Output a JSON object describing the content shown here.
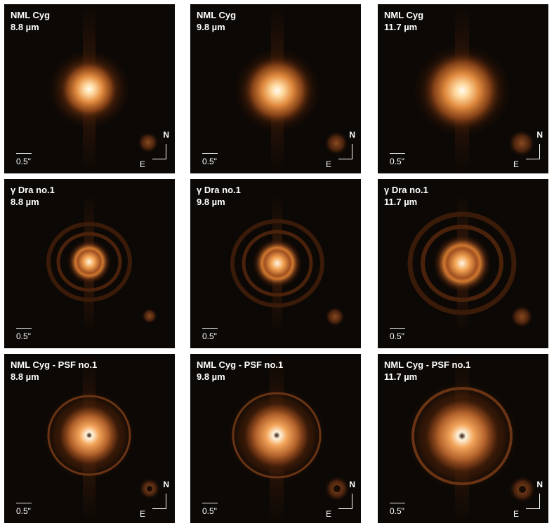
{
  "figure": {
    "scale_label": "0.5\"",
    "compass": {
      "north": "N",
      "east": "E"
    },
    "rows": [
      {
        "id": "target",
        "panels": [
          {
            "title": "NML Cyg",
            "wavelength": "8.8 µm"
          },
          {
            "title": "NML Cyg",
            "wavelength": "9.8 µm"
          },
          {
            "title": "NML Cyg",
            "wavelength": "11.7 µm"
          }
        ]
      },
      {
        "id": "psf",
        "panels": [
          {
            "title": "γ Dra no.1",
            "wavelength": "8.8 µm"
          },
          {
            "title": "γ Dra no.1",
            "wavelength": "9.8 µm"
          },
          {
            "title": "γ Dra no.1",
            "wavelength": "11.7 µm"
          }
        ]
      },
      {
        "id": "residual",
        "panels": [
          {
            "title": "NML Cyg - PSF no.1",
            "wavelength": "8.8 µm"
          },
          {
            "title": "NML Cyg - PSF no.1",
            "wavelength": "9.8 µm"
          },
          {
            "title": "NML Cyg - PSF no.1",
            "wavelength": "11.7 µm"
          }
        ]
      }
    ],
    "colors": {
      "background": "#0c0805",
      "core": "#fff8e8",
      "glow": "#e8903a",
      "halo": "#5a2a10"
    }
  }
}
